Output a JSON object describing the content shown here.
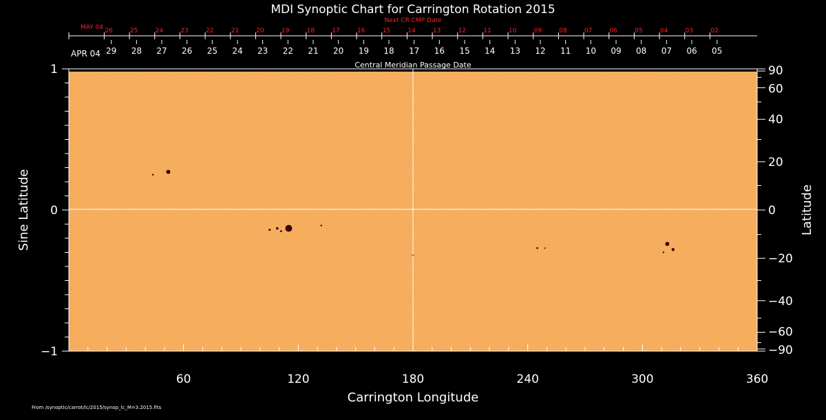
{
  "chart_data": {
    "type": "heatmap",
    "title": "MDI Synoptic Chart for Carrington Rotation 2015",
    "xlabel": "Carrington Longitude",
    "ylabel_left": "Sine Latitude",
    "ylabel_right": "Latitude",
    "top_axis_label": "Central Meridian Passage Date",
    "next_cr_label": "Next CR CMP Date",
    "xlim": [
      0,
      360
    ],
    "ylim": [
      -1,
      1
    ],
    "x_ticks": [
      60,
      120,
      180,
      240,
      300,
      360
    ],
    "y_ticks_left": [
      {
        "value": 1,
        "label": "1"
      },
      {
        "value": 0,
        "label": "0"
      },
      {
        "value": -1,
        "label": "−1"
      }
    ],
    "y_ticks_right": [
      {
        "lat": 90,
        "label": "90"
      },
      {
        "lat": 60,
        "label": "60"
      },
      {
        "lat": 40,
        "label": "40"
      },
      {
        "lat": 20,
        "label": "20"
      },
      {
        "lat": 0,
        "label": "0"
      },
      {
        "lat": -20,
        "label": "−20"
      },
      {
        "lat": -40,
        "label": "−40"
      },
      {
        "lat": -60,
        "label": "−60"
      },
      {
        "lat": -90,
        "label": "−90"
      }
    ],
    "cmp_dates": [
      {
        "lon": 0,
        "label": "APR 04"
      },
      {
        "lon": 22.2,
        "label": "29"
      },
      {
        "lon": 35.4,
        "label": "28"
      },
      {
        "lon": 48.6,
        "label": "27"
      },
      {
        "lon": 61.8,
        "label": "26"
      },
      {
        "lon": 75.0,
        "label": "25"
      },
      {
        "lon": 88.2,
        "label": "24"
      },
      {
        "lon": 101.4,
        "label": "23"
      },
      {
        "lon": 114.6,
        "label": "22"
      },
      {
        "lon": 127.8,
        "label": "21"
      },
      {
        "lon": 141.0,
        "label": "20"
      },
      {
        "lon": 154.2,
        "label": "19"
      },
      {
        "lon": 167.4,
        "label": "18"
      },
      {
        "lon": 180.6,
        "label": "17"
      },
      {
        "lon": 193.8,
        "label": "16"
      },
      {
        "lon": 207.0,
        "label": "15"
      },
      {
        "lon": 220.2,
        "label": "14"
      },
      {
        "lon": 233.4,
        "label": "13"
      },
      {
        "lon": 246.6,
        "label": "12"
      },
      {
        "lon": 259.8,
        "label": "11"
      },
      {
        "lon": 273.0,
        "label": "10"
      },
      {
        "lon": 286.2,
        "label": "09"
      },
      {
        "lon": 299.4,
        "label": "08"
      },
      {
        "lon": 312.6,
        "label": "07"
      },
      {
        "lon": 325.8,
        "label": "06"
      },
      {
        "lon": 339.0,
        "label": "05"
      }
    ],
    "next_cr_dates": [
      {
        "lon": 0,
        "label": "MAY 04"
      },
      {
        "lon": 18.5,
        "label": "26"
      },
      {
        "lon": 31.7,
        "label": "25"
      },
      {
        "lon": 44.9,
        "label": "24"
      },
      {
        "lon": 58.1,
        "label": "23"
      },
      {
        "lon": 71.3,
        "label": "22"
      },
      {
        "lon": 84.5,
        "label": "21"
      },
      {
        "lon": 97.7,
        "label": "20"
      },
      {
        "lon": 110.9,
        "label": "19"
      },
      {
        "lon": 124.1,
        "label": "18"
      },
      {
        "lon": 137.3,
        "label": "17"
      },
      {
        "lon": 150.5,
        "label": "16"
      },
      {
        "lon": 163.7,
        "label": "15"
      },
      {
        "lon": 176.9,
        "label": "14"
      },
      {
        "lon": 190.1,
        "label": "13"
      },
      {
        "lon": 203.3,
        "label": "12"
      },
      {
        "lon": 216.5,
        "label": "11"
      },
      {
        "lon": 229.7,
        "label": "10"
      },
      {
        "lon": 242.9,
        "label": "09"
      },
      {
        "lon": 256.1,
        "label": "08"
      },
      {
        "lon": 269.3,
        "label": "07"
      },
      {
        "lon": 282.5,
        "label": "06"
      },
      {
        "lon": 295.7,
        "label": "05"
      },
      {
        "lon": 308.9,
        "label": "04"
      },
      {
        "lon": 322.1,
        "label": "03"
      },
      {
        "lon": 335.3,
        "label": "02"
      }
    ],
    "sunspots": [
      {
        "lon": 52,
        "sinlat": 0.27,
        "size": 3.0
      },
      {
        "lon": 44,
        "sinlat": 0.25,
        "size": 1.2
      },
      {
        "lon": 115,
        "sinlat": -0.13,
        "size": 5.0
      },
      {
        "lon": 109,
        "sinlat": -0.13,
        "size": 1.8
      },
      {
        "lon": 105,
        "sinlat": -0.14,
        "size": 1.5
      },
      {
        "lon": 111,
        "sinlat": -0.15,
        "size": 1.4
      },
      {
        "lon": 132,
        "sinlat": -0.11,
        "size": 1.2
      },
      {
        "lon": 180,
        "sinlat": -0.32,
        "size": 1.3
      },
      {
        "lon": 245,
        "sinlat": -0.27,
        "size": 1.3
      },
      {
        "lon": 249,
        "sinlat": -0.27,
        "size": 1.0
      },
      {
        "lon": 313,
        "sinlat": -0.24,
        "size": 3.0
      },
      {
        "lon": 316,
        "sinlat": -0.28,
        "size": 2.2
      },
      {
        "lon": 311,
        "sinlat": -0.3,
        "size": 1.2
      }
    ],
    "grid": "center crosshair",
    "colors": {
      "background": "#000000",
      "field": "#f5a855",
      "axes": "#ffffff",
      "next_cr": "#ff2222",
      "sunspot": "#3a0500"
    }
  },
  "footer": "From /synoptic/carrot/lc/2015/synop_lc_M=3.2015.fits"
}
